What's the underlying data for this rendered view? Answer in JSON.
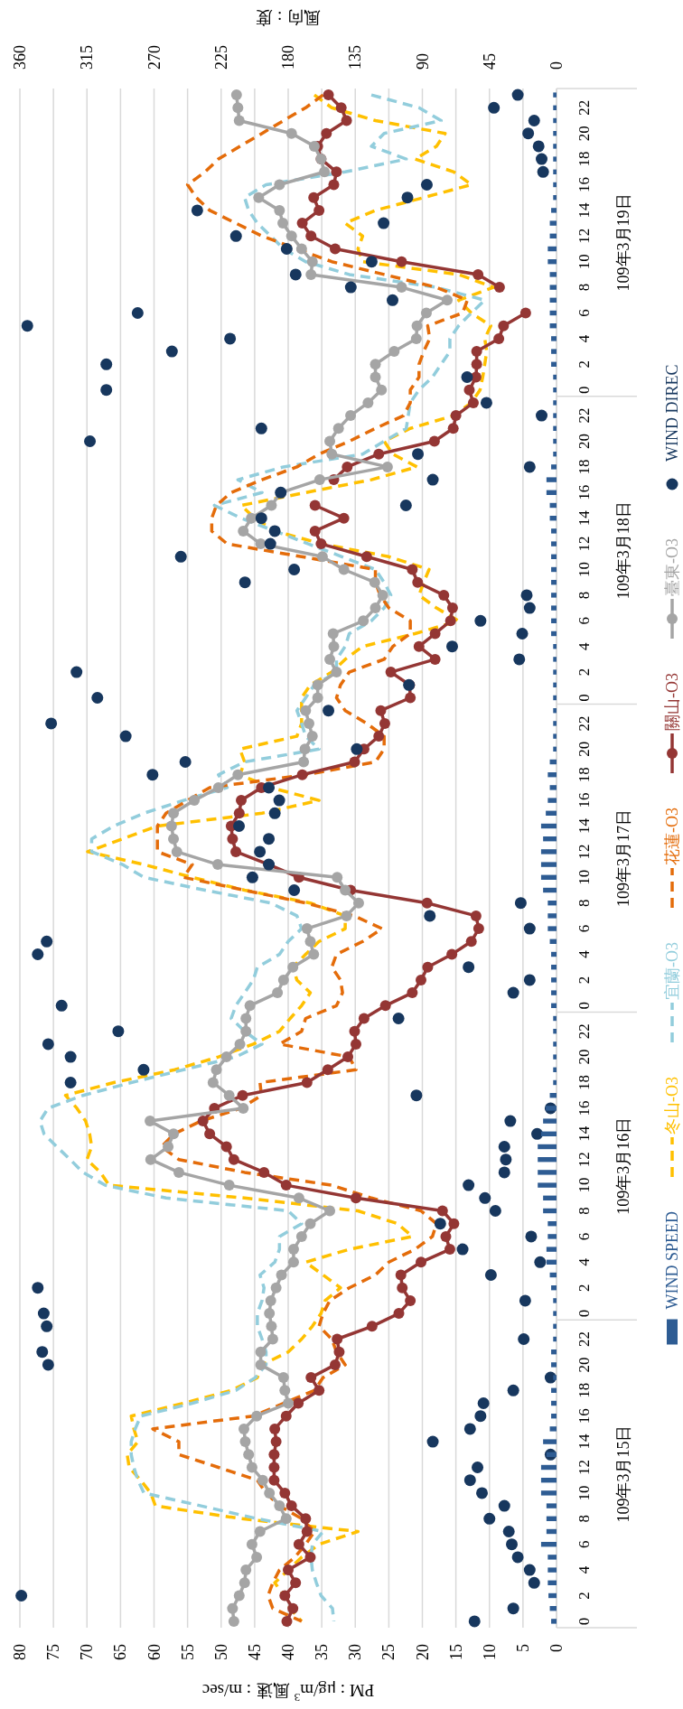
{
  "chart_data": {
    "type": "line",
    "orientation": "horizontal",
    "categories": [
      null,
      "22",
      null,
      "20",
      null,
      "18",
      null,
      "16",
      null,
      "14",
      null,
      "12",
      null,
      "10",
      null,
      "8",
      null,
      "6",
      null,
      "4",
      null,
      "2",
      null,
      "0",
      null,
      "22",
      null,
      "20",
      null,
      "18",
      null,
      "16",
      null,
      "14",
      null,
      "12",
      null,
      "10",
      null,
      "8",
      null,
      "6",
      null,
      "4",
      null,
      "2",
      null,
      "0",
      null,
      "22",
      null,
      "20",
      null,
      "18",
      null,
      "16",
      null,
      "14",
      null,
      "12",
      null,
      "10",
      null,
      "8",
      null,
      "6",
      null,
      "4",
      null,
      "2",
      null,
      "0",
      null,
      "22",
      null,
      "20",
      null,
      "18",
      null,
      "16",
      null,
      "14",
      null,
      "12",
      null,
      "10",
      null,
      "8",
      null,
      "6",
      null,
      "4",
      null,
      "2",
      null,
      "0",
      null,
      "22",
      null,
      "20",
      null,
      "18",
      null,
      "16",
      null,
      "14",
      null,
      "12",
      null,
      "10",
      null,
      "8",
      null,
      "6",
      null,
      "4",
      null,
      "2",
      null,
      "0"
    ],
    "annotations": [
      "109年3月19日",
      "109年3月18日",
      "109年3月17日",
      "109年3月16日",
      "109年3月15日"
    ],
    "xlabel": "PM : μg/m$^{3}$  風速 : m/sec",
    "x2label": "風向 : 度",
    "xlim": [
      80,
      0
    ],
    "xticks": [
      80,
      75,
      70,
      65,
      60,
      55,
      50,
      45,
      40,
      35,
      30,
      25,
      20,
      15,
      10,
      5,
      0
    ],
    "x2lim": [
      360,
      0
    ],
    "x2ticks": [
      360,
      315,
      270,
      225,
      180,
      135,
      90,
      45,
      0
    ],
    "grid": "x",
    "legend": "right",
    "series": [
      {
        "name": "WIND  SPEED",
        "type": "bar",
        "color": "#2e5c93",
        "values": [
          0.5,
          0.5,
          0.5,
          0.5,
          0.5,
          0.5,
          0.5,
          0.5,
          0.5,
          0.8,
          1,
          1,
          1.3,
          1.3,
          1,
          1,
          1,
          1,
          1,
          0.8,
          0.8,
          0.8,
          0.5,
          0.5,
          0.5,
          0.5,
          0.5,
          0.5,
          0.5,
          0.8,
          1.5,
          1.5,
          1,
          1,
          0.8,
          0.8,
          0.8,
          0.8,
          0.8,
          0.8,
          0.8,
          0.8,
          0.8,
          0.5,
          0.5,
          0.5,
          0.5,
          0.5,
          0.5,
          0.5,
          0.5,
          0.5,
          1,
          1.3,
          1,
          1.3,
          1.6,
          2.3,
          2,
          2.3,
          2.3,
          2.3,
          2,
          1.3,
          1.3,
          1.3,
          1,
          0.8,
          0.8,
          0.8,
          0.8,
          0.8,
          0.5,
          0.5,
          0.5,
          0.5,
          0.5,
          0.5,
          1,
          1.6,
          2,
          2.3,
          2.8,
          2.8,
          2.8,
          2.8,
          2,
          2,
          1.3,
          1.3,
          1.5,
          1.5,
          1,
          0.8,
          0.5,
          0.5,
          0.5,
          0.5,
          0.8,
          0.8,
          0.5,
          0.8,
          0.8,
          0.8,
          1,
          2,
          1.5,
          2.3,
          2.3,
          2.3,
          1.5,
          1.5,
          1.5,
          2.3,
          1.3,
          1.3,
          1.3,
          1.2,
          1,
          0.8
        ]
      },
      {
        "name": "冬山-O3",
        "line_style": "dashed",
        "marker": "none",
        "color": "#ffc000",
        "values": [
          36.1,
          33.5,
          27,
          16.6,
          17.9,
          21.1,
          15.3,
          12.7,
          19.8,
          27,
          31.5,
          28.9,
          29.6,
          28.9,
          14.6,
          9.4,
          14.6,
          12.7,
          9.8,
          10.7,
          10.4,
          10.7,
          11,
          11.4,
          12.7,
          15.3,
          21.8,
          25.7,
          24.4,
          20.8,
          27.6,
          37.4,
          47,
          45,
          42,
          35,
          25,
          19,
          19.8,
          20.5,
          17.9,
          14.6,
          21.1,
          28.9,
          31.5,
          33.5,
          36.7,
          38,
          38,
          38,
          38.7,
          47.2,
          46.5,
          47.2,
          42.6,
          35.4,
          43.9,
          59.5,
          64.7,
          69.9,
          61.5,
          54.3,
          46.5,
          36.7,
          31.5,
          31.5,
          35.4,
          37.4,
          39.3,
          38.7,
          36.7,
          38,
          39.7,
          41.3,
          45.2,
          50.4,
          56.9,
          66,
          73.2,
          71.5,
          70.2,
          69.6,
          69.3,
          70,
          68,
          66.7,
          46.5,
          29.6,
          23.7,
          21.5,
          30.9,
          37.4,
          34.8,
          32.2,
          34.5,
          35.1,
          36.4,
          38,
          40,
          43.9,
          44.6,
          48.5,
          55.6,
          63.4,
          63,
          62.4,
          64,
          63.7,
          62,
          60.5,
          59.8,
          47,
          29.6,
          35.4,
          38,
          40,
          42,
          40.6,
          39.7,
          38
        ]
      },
      {
        "name": "宜蘭-O3",
        "line_style": "dashed",
        "marker": "none",
        "color": "#92cddc",
        "values": [
          27.6,
          20.5,
          17.2,
          25.7,
          27.6,
          22.4,
          31.5,
          43.3,
          46.5,
          45.9,
          44.6,
          42.6,
          40.7,
          37.4,
          30.9,
          17.9,
          10.7,
          12.7,
          14.6,
          15.9,
          15.9,
          17.2,
          18.5,
          20.5,
          21.8,
          22.1,
          22.4,
          25.7,
          28.9,
          40.7,
          47.5,
          43.9,
          51,
          47,
          42,
          37,
          32,
          27,
          25.7,
          24.7,
          25.7,
          27.6,
          30.9,
          31.5,
          32.8,
          32.8,
          36.1,
          37.4,
          38.7,
          38,
          37.4,
          35.4,
          46.5,
          50.4,
          49.1,
          55.6,
          61.5,
          66,
          69.3,
          69.3,
          64.7,
          61.5,
          52.4,
          42.6,
          38.7,
          38,
          40,
          41.3,
          44.6,
          45.2,
          46.5,
          47.8,
          48.5,
          46.5,
          43.9,
          47.8,
          55.6,
          63.4,
          70.6,
          75.8,
          77,
          76.4,
          74.5,
          72.5,
          70.6,
          67.3,
          58.2,
          40,
          38,
          41.3,
          41.3,
          42,
          44.2,
          43.6,
          43.9,
          44.6,
          44.6,
          43.9,
          43.3,
          43.3,
          44.9,
          47.8,
          54.3,
          62,
          62.8,
          63.4,
          63.4,
          63,
          62.4,
          61.5,
          53,
          44.6,
          34.8,
          36.4,
          36.6,
          36.4,
          35.8,
          35.1,
          33.4,
          33.2
        ]
      },
      {
        "name": "花蓮-O3",
        "line_style": "dashed",
        "marker": "none",
        "color": "#e46c0a",
        "values": [
          34.8,
          37.4,
          40.7,
          43.9,
          47.2,
          50.4,
          52.4,
          55,
          53.7,
          51.7,
          47.8,
          43.9,
          38.7,
          33.5,
          25.7,
          17.9,
          13.3,
          14,
          19.2,
          18.9,
          19.8,
          20.5,
          20.5,
          21.8,
          21.8,
          22.8,
          27,
          30.9,
          35.4,
          38.7,
          43.9,
          48.5,
          50.7,
          51.4,
          51.4,
          49.1,
          38,
          27,
          27,
          26.3,
          25,
          21.8,
          21.8,
          24.4,
          25.7,
          30.9,
          32.2,
          32.8,
          31.5,
          28.3,
          25.7,
          25.7,
          27,
          37.4,
          51.7,
          55,
          58.2,
          59.5,
          59.5,
          59.5,
          54.3,
          55.6,
          46.5,
          37.4,
          30.2,
          26,
          28.9,
          32.8,
          33.5,
          32.2,
          31.9,
          32.8,
          37.4,
          38,
          41.3,
          30.9,
          29.9,
          44.2,
          44,
          47,
          53,
          57,
          58.9,
          56.3,
          46.5,
          33.5,
          27.6,
          20.2,
          17.9,
          18.5,
          21.1,
          25,
          27,
          30.9,
          33.8,
          34.8,
          35.4,
          33.5,
          32.8,
          31.5,
          34.8,
          36.1,
          40.7,
          45.2,
          60.2,
          56.3,
          56.3,
          50.4,
          44.6,
          43.3,
          41.3,
          38,
          36.1,
          37.4,
          39,
          41.3,
          42.3,
          43,
          42.3,
          38
        ]
      },
      {
        "name": "關山-O3",
        "line_style": "solid",
        "marker": "circle",
        "color": "#943634",
        "values": [
          34,
          32.1,
          31.3,
          34.3,
          35.6,
          35.1,
          32.8,
          33.2,
          36.2,
          35.4,
          37.9,
          36.6,
          33,
          23.1,
          11.7,
          8.5,
          null,
          4.6,
          7.9,
          8.6,
          11.9,
          11.9,
          12,
          13,
          12.4,
          15,
          15.4,
          18.2,
          26.5,
          31.2,
          33.2,
          null,
          36,
          31.7,
          36,
          35.1,
          28.3,
          21.5,
          20.7,
          16.8,
          15.5,
          15.8,
          18.1,
          20.5,
          18.1,
          24.7,
          21.9,
          21.8,
          26.2,
          25.6,
          26.5,
          28.7,
          30.1,
          37.9,
          44,
          47,
          47.3,
          48.5,
          48.3,
          47.8,
          42.9,
          38.4,
          30.7,
          19.3,
          12,
          11.6,
          12.7,
          15.6,
          19.2,
          20.2,
          21.5,
          25.5,
          28.7,
          30.1,
          29.9,
          31.1,
          34.1,
          37.2,
          46.8,
          51,
          52.7,
          51.7,
          49.2,
          48.1,
          43.6,
          40.3,
          29.9,
          17,
          15.3,
          16.5,
          15.9,
          20.2,
          23.2,
          23,
          21.8,
          23.5,
          27.5,
          32.7,
          32.4,
          33,
          36.6,
          35.4,
          38.5,
          40.3,
          42,
          41.8,
          42.1,
          42.1,
          42.1,
          40.5,
          39.5,
          37.4,
          37.2,
          38.4,
          36.7,
          40,
          38.9,
          40.5,
          39.3,
          40.2
        ]
      },
      {
        "name": "臺東-O3",
        "line_style": "solid",
        "marker": "circle",
        "color": "#a5a5a5",
        "values": [
          47.7,
          47.5,
          47.3,
          39.5,
          36.1,
          35.1,
          34.6,
          41.3,
          44.4,
          41.3,
          40.8,
          39.5,
          38,
          36.4,
          36.6,
          23.1,
          16.3,
          19.4,
          20.8,
          20.9,
          24.2,
          27,
          27,
          26.1,
          28.1,
          30.7,
          32.5,
          33.8,
          33.5,
          25.2,
          35.3,
          41.1,
          42.5,
          45.5,
          46.7,
          44.1,
          34.9,
          31.7,
          27.1,
          25.9,
          27,
          28.8,
          33.3,
          33.2,
          33.8,
          32.8,
          35.6,
          35.6,
          37.4,
          36.9,
          36.4,
          37.5,
          37.7,
          47.5,
          50.4,
          54,
          57.1,
          57.4,
          57.1,
          56.6,
          50.5,
          32.7,
          31.5,
          29.5,
          31.3,
          37.2,
          36.7,
          36.2,
          39.3,
          40.7,
          41.6,
          45.7,
          46.3,
          46.3,
          47.2,
          49.2,
          50.7,
          51.2,
          48.8,
          46.7,
          60.6,
          57.1,
          57.9,
          60.5,
          56.3,
          48.8,
          38.4,
          33.8,
          36.7,
          38,
          39.2,
          39.2,
          41,
          41.8,
          42.6,
          42.8,
          42.5,
          42.3,
          44.1,
          44.1,
          40.7,
          40.5,
          40,
          44.7,
          46.6,
          46.4,
          45.9,
          45.4,
          43.8,
          42.8,
          41.3,
          40.3,
          44.2,
          45.4,
          44.7,
          46.3,
          46.5,
          47.3,
          48.3,
          48.1
        ]
      },
      {
        "name": "WIND  DIREC",
        "type": "scatter",
        "axis": "x2",
        "marker": "circle",
        "color": "#17375e",
        "values": [
          26,
          42,
          15,
          19,
          12,
          10,
          9,
          87,
          100,
          241,
          116,
          215,
          181,
          124,
          175,
          138,
          110,
          281,
          355,
          219,
          258,
          302,
          60,
          302,
          47,
          10,
          198,
          313,
          93,
          18,
          83,
          185,
          101,
          198,
          189,
          192,
          252,
          176,
          209,
          20,
          18,
          51,
          23,
          70,
          25,
          322,
          99,
          308,
          153,
          339,
          289,
          134,
          249,
          271,
          193,
          186,
          189,
          213,
          193,
          199,
          193,
          204,
          176,
          24,
          85,
          18,
          342,
          348,
          59,
          18,
          29,
          332,
          106,
          294,
          341,
          326,
          277,
          326,
          94,
          4,
          31,
          13,
          35,
          34,
          35,
          59,
          48,
          41,
          78,
          17,
          63,
          11,
          44,
          348,
          21,
          344,
          342,
          22,
          345,
          341,
          4,
          29,
          49,
          51,
          58,
          83,
          4,
          53,
          58,
          50,
          35,
          45,
          32,
          30,
          26,
          18,
          15,
          359,
          29,
          55
        ]
      }
    ]
  }
}
